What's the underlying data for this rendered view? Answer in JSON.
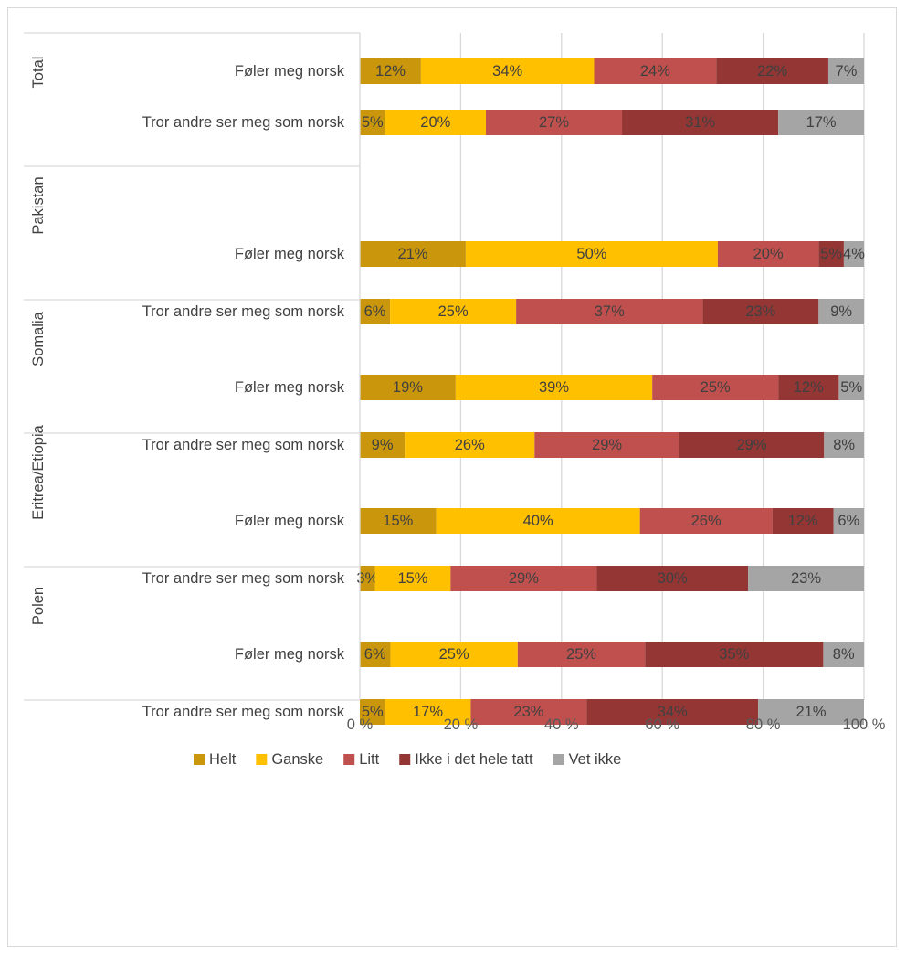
{
  "chart_data": {
    "type": "bar",
    "orientation": "horizontal",
    "stacked": "percent",
    "groups": [
      {
        "name": "Total",
        "rows": [
          {
            "label": "Føler meg norsk",
            "values": [
              12,
              34,
              24,
              22,
              7
            ]
          },
          {
            "label": "Tror andre ser meg som norsk",
            "values": [
              5,
              20,
              27,
              31,
              17
            ]
          }
        ]
      },
      {
        "name": "Pakistan",
        "rows": [
          {
            "label": "Føler meg norsk",
            "values": [
              21,
              50,
              20,
              5,
              4
            ]
          },
          {
            "label": "Tror andre ser meg som norsk",
            "values": [
              6,
              25,
              37,
              23,
              9
            ]
          }
        ]
      },
      {
        "name": "Somalia",
        "rows": [
          {
            "label": "Føler meg norsk",
            "values": [
              19,
              39,
              25,
              12,
              5
            ]
          },
          {
            "label": "Tror andre ser meg som norsk",
            "values": [
              9,
              26,
              29,
              29,
              8
            ]
          }
        ]
      },
      {
        "name": "Eritrea/Etiopia",
        "rows": [
          {
            "label": "Føler meg norsk",
            "values": [
              15,
              40,
              26,
              12,
              6
            ]
          },
          {
            "label": "Tror andre ser meg som norsk",
            "values": [
              3,
              15,
              29,
              30,
              23
            ]
          }
        ]
      },
      {
        "name": "Polen",
        "rows": [
          {
            "label": "Føler meg norsk",
            "values": [
              6,
              25,
              25,
              35,
              8
            ]
          },
          {
            "label": "Tror andre ser meg som norsk",
            "values": [
              5,
              17,
              23,
              34,
              21
            ]
          }
        ]
      }
    ],
    "series": [
      {
        "name": "Helt",
        "color": "#C9960C"
      },
      {
        "name": "Ganske",
        "color": "#FFC000"
      },
      {
        "name": "Litt",
        "color": "#C0504D"
      },
      {
        "name": "Ikke i det hele tatt",
        "color": "#943634"
      },
      {
        "name": "Vet ikke",
        "color": "#A5A5A5"
      }
    ],
    "x_ticks": [
      "0 %",
      "20 %",
      "40 %",
      "60 %",
      "80 %",
      "100 %"
    ],
    "xlim": [
      0,
      100
    ],
    "grid": true,
    "legend_position": "bottom",
    "title": "",
    "xlabel": "",
    "ylabel": ""
  }
}
